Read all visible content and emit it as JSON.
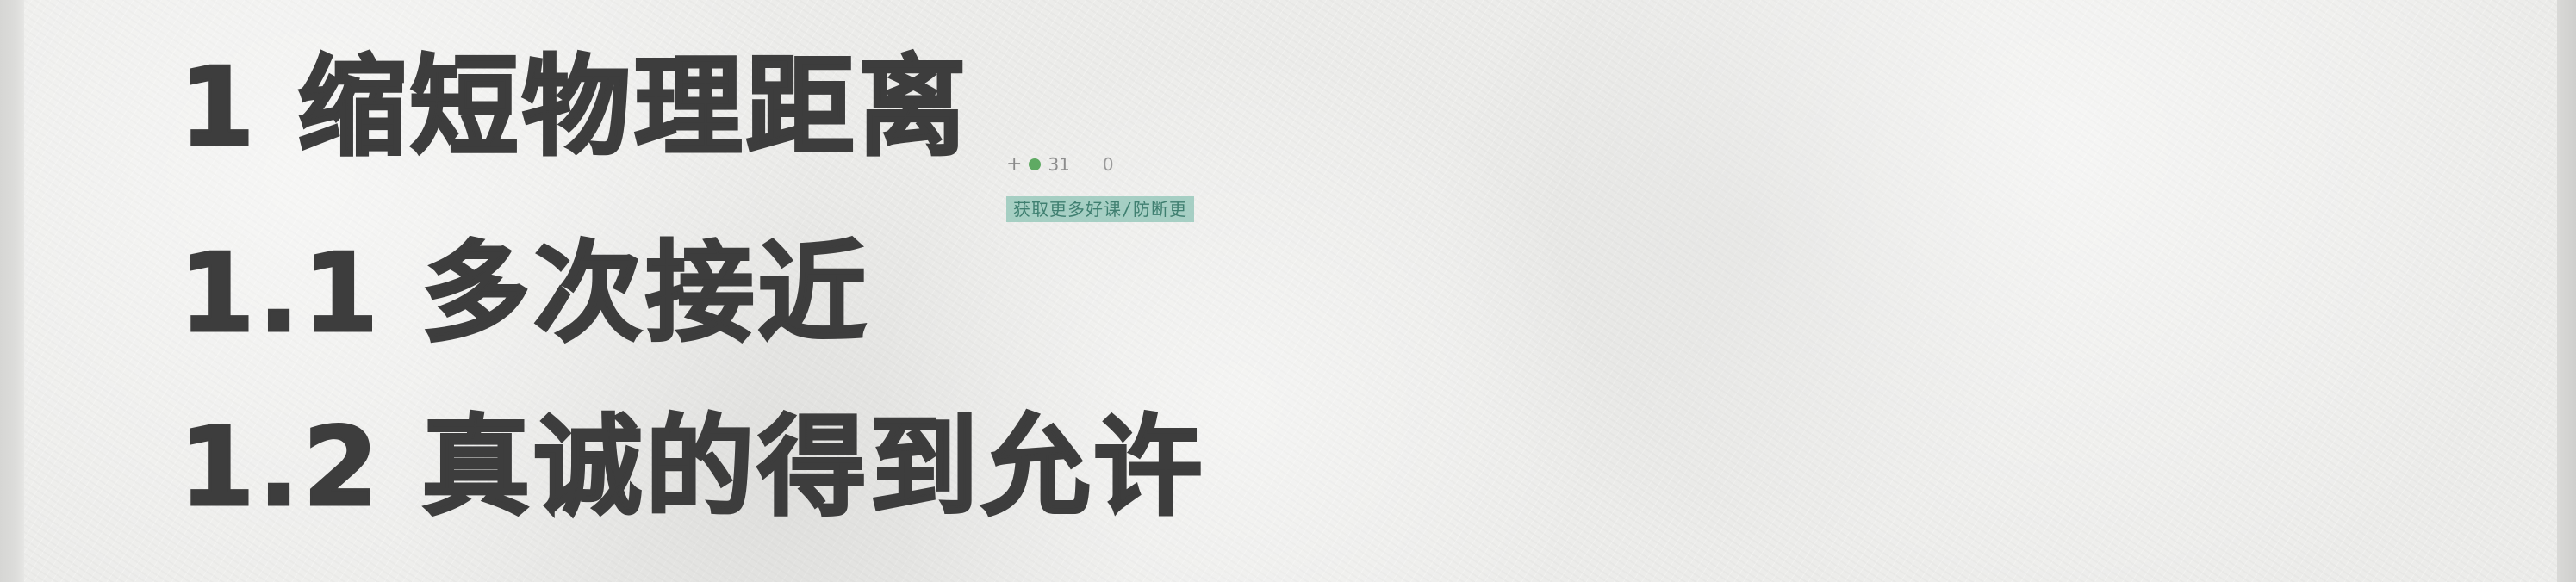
{
  "headings": [
    {
      "number": "1",
      "text": "缩短物理距离"
    },
    {
      "number": "1.1",
      "text": "多次接近"
    },
    {
      "number": "1.2",
      "text": "真诚的得到允许"
    }
  ],
  "overlay": {
    "plus": "+",
    "icon": "green-dot-icon",
    "counter": "31",
    "counter_tail": "0"
  },
  "watermark": {
    "text": "获取更多好课/防断更"
  },
  "colors": {
    "text": "#3d3d3d",
    "paper": "#ececea",
    "watermark_bg": "#8ec4b6",
    "dot": "#5faa63"
  }
}
